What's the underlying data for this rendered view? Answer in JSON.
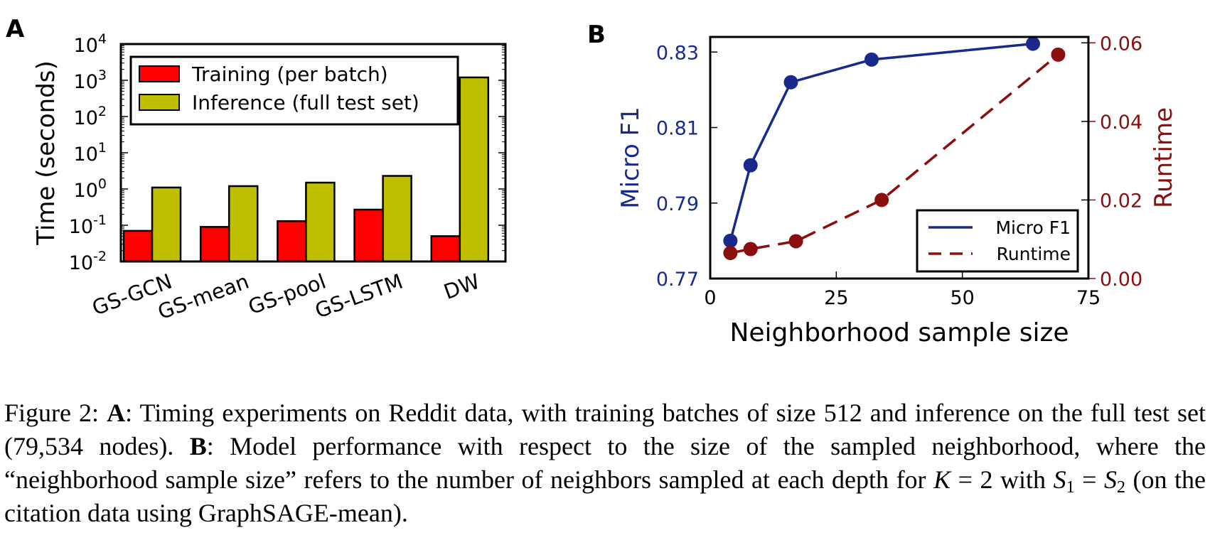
{
  "panel_a": {
    "label": "A",
    "chart_data": {
      "type": "bar",
      "categories": [
        "GS-GCN",
        "GS-mean",
        "GS-pool",
        "GS-LSTM",
        "DW"
      ],
      "series": [
        {
          "name": "Training (per batch)",
          "color": "#ff0000",
          "values": [
            0.07,
            0.09,
            0.13,
            0.27,
            0.05
          ]
        },
        {
          "name": "Inference (full test set)",
          "color": "#bfbf00",
          "values": [
            1.1,
            1.2,
            1.5,
            2.3,
            1200
          ]
        }
      ],
      "ylabel": "Time (seconds)",
      "yscale": "log",
      "ylim": [
        0.01,
        10000
      ],
      "yticks": [
        {
          "base": "10",
          "exp": "-2"
        },
        {
          "base": "10",
          "exp": "-1"
        },
        {
          "base": "10",
          "exp": "0"
        },
        {
          "base": "10",
          "exp": "1"
        },
        {
          "base": "10",
          "exp": "2"
        },
        {
          "base": "10",
          "exp": "3"
        },
        {
          "base": "10",
          "exp": "4"
        }
      ],
      "legend_position": "top-left"
    }
  },
  "panel_b": {
    "label": "B",
    "chart_data": {
      "type": "line",
      "xlabel": "Neighborhood sample size",
      "xlim": [
        0,
        75
      ],
      "xticks": [
        "0",
        "25",
        "50",
        "75"
      ],
      "left_axis": {
        "label": "Micro F1",
        "color": "#1a2a8c",
        "ylim": [
          0.77,
          0.834
        ],
        "ticks": [
          "0.77",
          "0.79",
          "0.81",
          "0.83"
        ]
      },
      "right_axis": {
        "label": "Runtime",
        "color": "#8b0e0e",
        "ylim": [
          0,
          0.0615
        ],
        "ticks": [
          "0.00",
          "0.02",
          "0.04",
          "0.06"
        ]
      },
      "series": [
        {
          "name": "Micro F1",
          "axis": "left",
          "style": "solid",
          "color": "#1a2a8c",
          "x": [
            4,
            8,
            16,
            32,
            64
          ],
          "y": [
            0.78,
            0.8,
            0.822,
            0.828,
            0.8322
          ]
        },
        {
          "name": "Runtime",
          "axis": "right",
          "style": "dashed",
          "color": "#8b0e0e",
          "x": [
            4,
            8,
            17,
            34,
            69
          ],
          "y": [
            0.0065,
            0.0075,
            0.0095,
            0.02,
            0.057
          ]
        }
      ],
      "legend_position": "lower-right"
    }
  },
  "caption": {
    "figure_num": "Figure 2:",
    "a_label": "A",
    "a_text": ": Timing experiments on Reddit data, with training batches of size 512 and inference on the full test set (79,534 nodes).",
    "b_label": "B",
    "b_text_1": ": Model performance with respect to the size of the sampled neighborhood, where the “neighborhood sample size” refers to the number of neighbors sampled at each depth for",
    "k_var": "K",
    "eq1": " = 2 with ",
    "s_var": "S",
    "sub1": "1",
    "eq2": " = ",
    "sub2": "2",
    "b_text_2": " (on the citation data using GraphSAGE-mean)."
  }
}
